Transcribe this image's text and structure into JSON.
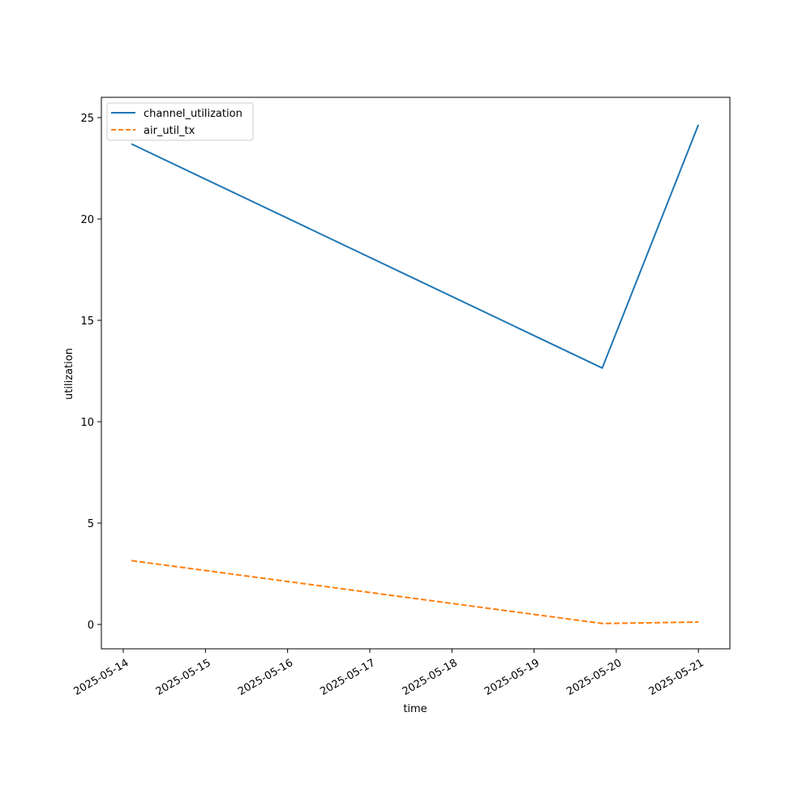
{
  "chart_data": {
    "type": "line",
    "title": "",
    "xlabel": "time",
    "ylabel": "utilization",
    "x_ticks": [
      "2025-05-14",
      "2025-05-15",
      "2025-05-16",
      "2025-05-17",
      "2025-05-18",
      "2025-05-19",
      "2025-05-20",
      "2025-05-21"
    ],
    "xlim": [
      "2025-05-13T17:36",
      "2025-05-21T09:12"
    ],
    "y_ticks": [
      0,
      5,
      10,
      15,
      20,
      25
    ],
    "ylim": [
      -1.2,
      26.0
    ],
    "grid": false,
    "legend_position": "top-left",
    "series": [
      {
        "name": "channel_utilization",
        "color": "#1f77b4",
        "style": "solid",
        "x": [
          "2025-05-14T02:24",
          "2025-05-19T19:55",
          "2025-05-21T00:00"
        ],
        "y": [
          23.7,
          12.65,
          24.65
        ]
      },
      {
        "name": "air_util_tx",
        "color": "#ff7f0e",
        "style": "dashed",
        "x": [
          "2025-05-14T02:24",
          "2025-05-19T19:55",
          "2025-05-21T00:00"
        ],
        "y": [
          3.15,
          0.05,
          0.12
        ]
      }
    ]
  }
}
